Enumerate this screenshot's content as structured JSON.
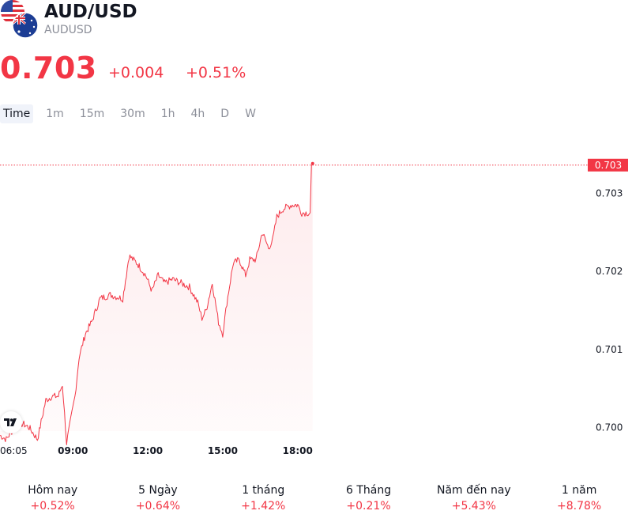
{
  "header": {
    "title": "AUD/USD",
    "subtitle": "AUDUSD",
    "price": "0.703",
    "change_abs": "+0.004",
    "change_pct": "+0.51%"
  },
  "tabs": [
    {
      "label": "Time",
      "active": true
    },
    {
      "label": "1m"
    },
    {
      "label": "15m"
    },
    {
      "label": "30m"
    },
    {
      "label": "1h"
    },
    {
      "label": "4h"
    },
    {
      "label": "D"
    },
    {
      "label": "W"
    }
  ],
  "chart_data": {
    "type": "area",
    "x_ticks": [
      "06:05",
      "09:00",
      "12:00",
      "15:00",
      "18:00"
    ],
    "y_ticks": [
      0.7,
      0.701,
      0.702,
      0.703
    ],
    "ylim": [
      0.6995,
      0.70355
    ],
    "xlim": [
      "06:05",
      "20:00"
    ],
    "last_price_label": "0.703",
    "last_price": 0.70336,
    "line_color": "#f23645",
    "series": [
      {
        "points": [
          [
            "06:05",
            0.6999
          ],
          [
            "06:20",
            0.69985
          ],
          [
            "06:40",
            0.7
          ],
          [
            "07:00",
            0.70005
          ],
          [
            "07:15",
            0.7
          ],
          [
            "07:35",
            0.69985
          ],
          [
            "07:55",
            0.70035
          ],
          [
            "08:10",
            0.7004
          ],
          [
            "08:25",
            0.7004
          ],
          [
            "08:35",
            0.70055
          ],
          [
            "08:45",
            0.6998
          ],
          [
            "08:55",
            0.7001
          ],
          [
            "09:05",
            0.7004
          ],
          [
            "09:15",
            0.7009
          ],
          [
            "09:30",
            0.7012
          ],
          [
            "09:45",
            0.70135
          ],
          [
            "10:05",
            0.70165
          ],
          [
            "10:30",
            0.7017
          ],
          [
            "11:00",
            0.70165
          ],
          [
            "11:15",
            0.7022
          ],
          [
            "11:35",
            0.7021
          ],
          [
            "11:55",
            0.70195
          ],
          [
            "12:10",
            0.70175
          ],
          [
            "12:25",
            0.70195
          ],
          [
            "12:40",
            0.70185
          ],
          [
            "13:00",
            0.7019
          ],
          [
            "13:20",
            0.70185
          ],
          [
            "13:40",
            0.7018
          ],
          [
            "14:00",
            0.7016
          ],
          [
            "14:10",
            0.7014
          ],
          [
            "14:20",
            0.7015
          ],
          [
            "14:35",
            0.70185
          ],
          [
            "14:50",
            0.70135
          ],
          [
            "15:00",
            0.7012
          ],
          [
            "15:10",
            0.7016
          ],
          [
            "15:25",
            0.7021
          ],
          [
            "15:40",
            0.70215
          ],
          [
            "15:55",
            0.70195
          ],
          [
            "16:05",
            0.70215
          ],
          [
            "16:20",
            0.70215
          ],
          [
            "16:35",
            0.7025
          ],
          [
            "16:50",
            0.7023
          ],
          [
            "17:00",
            0.7024
          ],
          [
            "17:10",
            0.7027
          ],
          [
            "17:25",
            0.7028
          ],
          [
            "17:45",
            0.70285
          ],
          [
            "18:00",
            0.70285
          ],
          [
            "18:10",
            0.70275
          ],
          [
            "18:20",
            0.70275
          ],
          [
            "18:30",
            0.70275
          ],
          [
            "18:33",
            0.70335
          ],
          [
            "18:36",
            0.70338
          ]
        ]
      }
    ]
  },
  "periods": [
    {
      "label": "Hôm nay",
      "value": "+0.52%"
    },
    {
      "label": "5 Ngày",
      "value": "+0.64%"
    },
    {
      "label": "1 tháng",
      "value": "+1.42%"
    },
    {
      "label": "6 Tháng",
      "value": "+0.21%"
    },
    {
      "label": "Năm đến nay",
      "value": "+5.43%"
    },
    {
      "label": "1 năm",
      "value": "+8.78%"
    }
  ]
}
